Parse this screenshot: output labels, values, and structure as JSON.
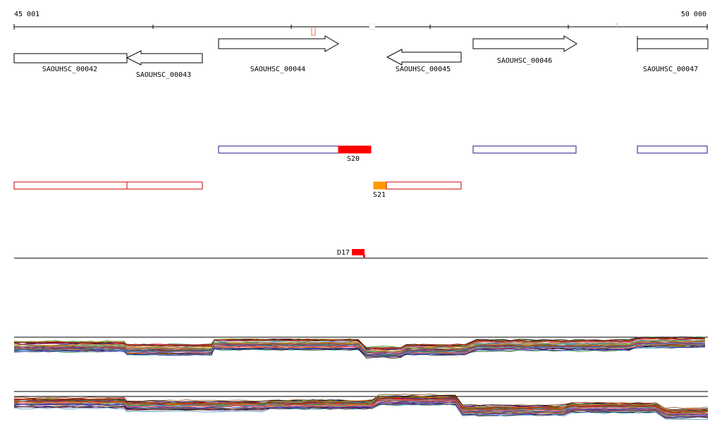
{
  "ruler": {
    "start_label": "45 001",
    "end_label": "50 000"
  },
  "genes": [
    {
      "name": "SAOUHSC_00042",
      "strand": "+"
    },
    {
      "name": "SAOUHSC_00043",
      "strand": "-"
    },
    {
      "name": "SAOUHSC_00044",
      "strand": "+"
    },
    {
      "name": "SAOUHSC_00045",
      "strand": "-"
    },
    {
      "name": "SAOUHSC_00046",
      "strand": "+"
    },
    {
      "name": "SAOUHSC_00047",
      "strand": "+"
    }
  ],
  "features": {
    "s20": "S20",
    "s21": "S21",
    "d17": "D17"
  },
  "colors": {
    "gene_outline": "#000000",
    "forward_track": "#1a1a8c",
    "reverse_track": "#cc0000",
    "s20_fill": "#ff0000",
    "s21_fill": "#ff9900",
    "d17_fill": "#ff0000",
    "ruler_marker": "#e07050"
  },
  "tracks": {
    "forward_signal_lines": 40,
    "reverse_signal_lines": 40
  }
}
